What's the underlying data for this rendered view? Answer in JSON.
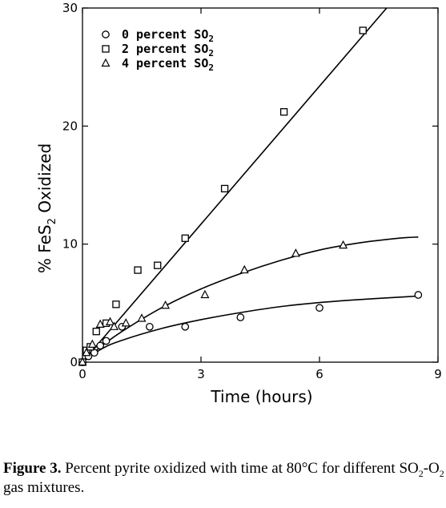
{
  "chart_data": {
    "type": "scatter",
    "xlabel": "Time  (hours)",
    "ylabel_parts": [
      "% FeS",
      "2",
      " Oxidized"
    ],
    "xlim": [
      0,
      9
    ],
    "ylim": [
      0,
      30
    ],
    "x_ticks": [
      0,
      3,
      6,
      9
    ],
    "y_ticks": [
      0,
      10,
      20,
      30
    ],
    "x_tick_labels": [
      "0",
      "3",
      "6",
      "9"
    ],
    "y_tick_labels": [
      "0",
      "10",
      "20",
      "30"
    ],
    "legend_placement": "top-left",
    "grid": false,
    "series": [
      {
        "name": "0 percent SO",
        "name_sub": "2",
        "marker": "circle",
        "points": [
          [
            0,
            0
          ],
          [
            0.15,
            0.5
          ],
          [
            0.3,
            0.8
          ],
          [
            0.45,
            1.4
          ],
          [
            0.6,
            1.8
          ],
          [
            1.0,
            3.0
          ],
          [
            1.7,
            3.0
          ],
          [
            2.6,
            3.0
          ],
          [
            4.0,
            3.8
          ],
          [
            6.0,
            4.6
          ],
          [
            8.5,
            5.7
          ]
        ],
        "fit": [
          [
            0,
            0
          ],
          [
            0.5,
            1.15
          ],
          [
            1,
            1.85
          ],
          [
            2,
            2.85
          ],
          [
            3,
            3.6
          ],
          [
            4,
            4.2
          ],
          [
            5,
            4.7
          ],
          [
            6,
            5.05
          ],
          [
            7,
            5.3
          ],
          [
            8,
            5.5
          ],
          [
            8.5,
            5.6
          ]
        ]
      },
      {
        "name": "2 percent SO",
        "name_sub": "2",
        "marker": "square",
        "points": [
          [
            0,
            0
          ],
          [
            0.1,
            1.0
          ],
          [
            0.2,
            1.3
          ],
          [
            0.35,
            2.6
          ],
          [
            0.6,
            3.3
          ],
          [
            0.85,
            4.9
          ],
          [
            1.4,
            7.8
          ],
          [
            1.9,
            8.2
          ],
          [
            2.6,
            10.5
          ],
          [
            3.6,
            14.7
          ],
          [
            5.1,
            21.2
          ],
          [
            7.1,
            28.1
          ]
        ],
        "fit": [
          [
            0,
            0
          ],
          [
            7.7,
            30
          ]
        ]
      },
      {
        "name": "4 percent SO",
        "name_sub": "2",
        "marker": "triangle",
        "points": [
          [
            0,
            0
          ],
          [
            0.1,
            0.8
          ],
          [
            0.25,
            1.5
          ],
          [
            0.45,
            3.2
          ],
          [
            0.7,
            3.4
          ],
          [
            0.8,
            3.0
          ],
          [
            1.1,
            3.3
          ],
          [
            1.5,
            3.7
          ],
          [
            2.1,
            4.8
          ],
          [
            3.1,
            5.7
          ],
          [
            4.1,
            7.8
          ],
          [
            5.4,
            9.2
          ],
          [
            6.6,
            9.9
          ]
        ],
        "fit": [
          [
            0,
            0
          ],
          [
            0.5,
            1.4
          ],
          [
            1,
            2.6
          ],
          [
            2,
            4.6
          ],
          [
            3,
            6.2
          ],
          [
            4,
            7.5
          ],
          [
            5,
            8.6
          ],
          [
            6,
            9.5
          ],
          [
            7,
            10.1
          ],
          [
            8,
            10.5
          ],
          [
            8.5,
            10.6
          ]
        ]
      }
    ]
  },
  "caption": {
    "label": "Figure 3.",
    "text_parts": [
      " Percent pyrite oxidized with time at 80°C for different SO",
      "2",
      "-O",
      "2",
      " gas mixtures."
    ]
  }
}
